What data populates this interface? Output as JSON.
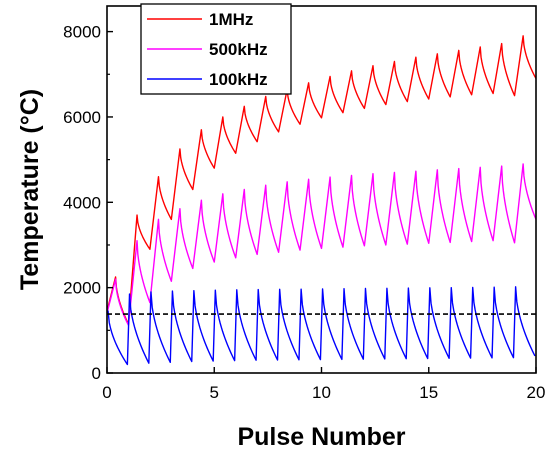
{
  "chart_data": {
    "type": "line",
    "xlabel": "Pulse Number",
    "ylabel": "Temperature (°C)",
    "xlim": [
      0,
      20
    ],
    "ylim": [
      0,
      8600
    ],
    "x_ticks": [
      0,
      5,
      10,
      15,
      20
    ],
    "y_ticks": [
      0,
      2000,
      4000,
      6000,
      8000
    ],
    "grid": false,
    "legend_position": "top-left",
    "reference_line": {
      "y": 1380,
      "style": "dashed",
      "color": "#000000"
    },
    "series": [
      {
        "name": "1MHz",
        "color": "#ff0000",
        "model": {
          "start_x": 0.0,
          "start_y": 1450,
          "period": 1.0,
          "peak_offset": 0.4,
          "curve_end": 1.0
        },
        "peaks": [
          2250,
          3700,
          4600,
          5250,
          5700,
          6000,
          6250,
          6480,
          6650,
          6800,
          6950,
          7080,
          7200,
          7300,
          7400,
          7480,
          7560,
          7640,
          7720,
          7900
        ],
        "troughs": [
          1150,
          2900,
          3600,
          4300,
          4800,
          5150,
          5420,
          5650,
          5830,
          5980,
          6100,
          6200,
          6290,
          6360,
          6420,
          6470,
          6520,
          6550,
          6500,
          6900
        ]
      },
      {
        "name": "500kHz",
        "color": "#ff00ff",
        "model": {
          "start_x": 0.0,
          "start_y": 1400,
          "period": 1.0,
          "peak_offset": 0.4,
          "curve_end": 1.0
        },
        "peaks": [
          2200,
          3100,
          3600,
          3850,
          4050,
          4200,
          4300,
          4400,
          4480,
          4540,
          4590,
          4630,
          4670,
          4700,
          4730,
          4760,
          4790,
          4820,
          4850,
          4900
        ],
        "troughs": [
          1120,
          1650,
          2150,
          2450,
          2600,
          2700,
          2780,
          2830,
          2880,
          2920,
          2950,
          2980,
          3000,
          3020,
          3040,
          3060,
          3080,
          3100,
          3050,
          3600
        ]
      },
      {
        "name": "100kHz",
        "color": "#0000ff",
        "model": {
          "start_x": 0.0,
          "start_y": 1450,
          "period": 1.0,
          "peak_offset": 0.05,
          "curve_end": 0.95
        },
        "peaks": [
          1450,
          1850,
          1900,
          1920,
          1930,
          1940,
          1950,
          1955,
          1960,
          1965,
          1970,
          1975,
          1980,
          1985,
          1990,
          1995,
          2000,
          2005,
          2010,
          2020
        ],
        "troughs": [
          200,
          230,
          250,
          270,
          280,
          290,
          300,
          305,
          310,
          315,
          320,
          325,
          330,
          335,
          340,
          345,
          350,
          355,
          360,
          400
        ]
      }
    ]
  }
}
